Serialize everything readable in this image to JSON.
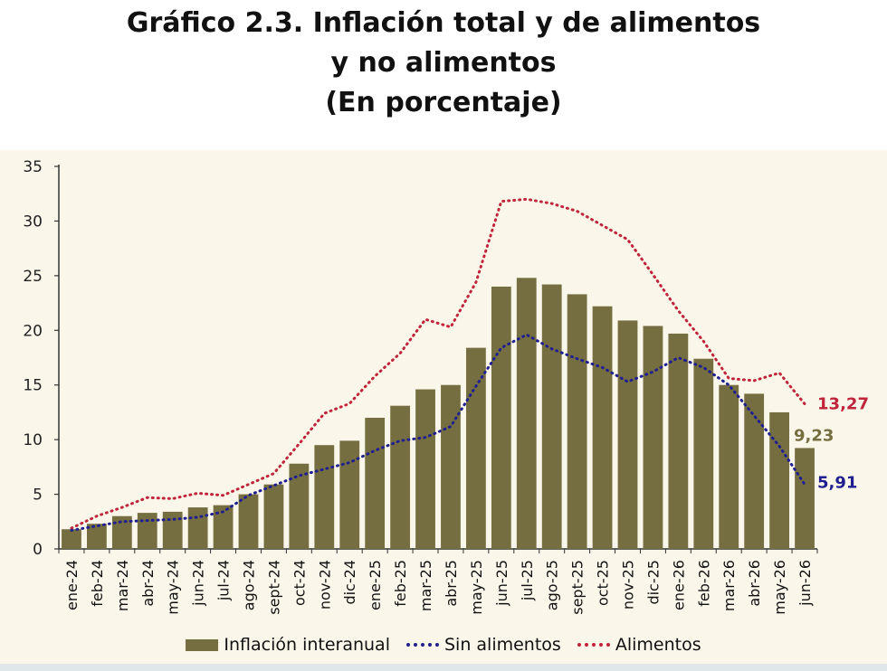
{
  "title": {
    "line1": "Gráfico 2.3. Inflación total y de alimentos",
    "line2": "y no alimentos",
    "line3": "(En porcentaje)"
  },
  "colors": {
    "bars": "#756e40",
    "sin_alimentos": "#1f1f8f",
    "alimentos": "#c0243b",
    "panel": "#fbf6ea"
  },
  "chart_data": {
    "type": "bar",
    "categories": [
      "ene-24",
      "feb-24",
      "mar-24",
      "abr-24",
      "may-24",
      "jun-24",
      "jul-24",
      "ago-24",
      "sept-24",
      "oct-24",
      "nov-24",
      "dic-24",
      "ene-25",
      "feb-25",
      "mar-25",
      "abr-25",
      "may-25",
      "jun-25",
      "jul-25",
      "ago-25",
      "sept-25",
      "oct-25",
      "nov-25",
      "dic-25",
      "ene-26",
      "feb-26",
      "mar-26",
      "abr-26",
      "may-26",
      "jun-26"
    ],
    "ylim": [
      0,
      35
    ],
    "yticks": [
      0,
      5,
      10,
      15,
      20,
      25,
      30,
      35
    ],
    "grid": false,
    "legend_position": "bottom",
    "series": [
      {
        "name": "Inflación interanual",
        "type": "bar",
        "values": [
          1.8,
          2.3,
          3.0,
          3.3,
          3.4,
          3.8,
          4.0,
          5.0,
          5.9,
          7.8,
          9.5,
          9.9,
          12.0,
          13.1,
          14.6,
          15.0,
          18.4,
          24.0,
          24.8,
          24.2,
          23.3,
          22.2,
          20.9,
          20.4,
          19.7,
          17.4,
          15.0,
          14.2,
          12.5,
          9.23
        ]
      },
      {
        "name": "Sin alimentos",
        "type": "line",
        "values": [
          1.7,
          2.1,
          2.5,
          2.6,
          2.7,
          2.9,
          3.4,
          4.9,
          5.8,
          6.7,
          7.3,
          7.9,
          9.0,
          9.9,
          10.2,
          11.2,
          14.9,
          18.4,
          19.6,
          18.3,
          17.4,
          16.6,
          15.3,
          16.2,
          17.5,
          16.6,
          15.0,
          12.2,
          9.4,
          5.91
        ]
      },
      {
        "name": "Alimentos",
        "type": "line",
        "values": [
          1.9,
          3.0,
          3.8,
          4.7,
          4.6,
          5.1,
          4.9,
          5.9,
          6.9,
          9.6,
          12.4,
          13.3,
          15.8,
          17.9,
          21.0,
          20.3,
          24.4,
          31.8,
          32.0,
          31.6,
          30.9,
          29.6,
          28.3,
          25.1,
          21.8,
          19.0,
          15.6,
          15.4,
          16.1,
          13.27
        ]
      }
    ],
    "end_labels": {
      "alimentos": "13,27",
      "inflacion": "9,23",
      "sin_alimentos": "5,91"
    }
  }
}
